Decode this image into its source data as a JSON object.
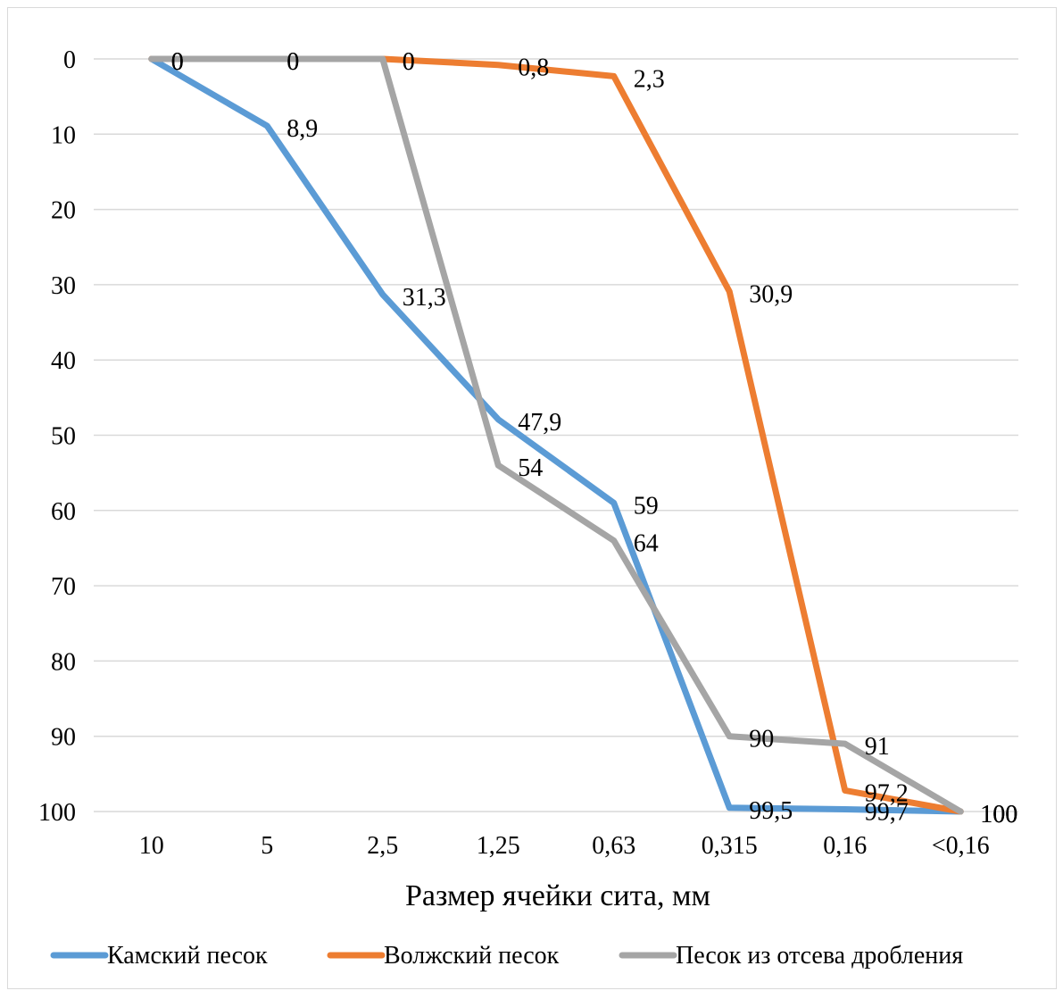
{
  "chart_data": {
    "type": "line",
    "title": "",
    "xlabel": "Размер ячейки сита, мм",
    "ylabel": "",
    "categories": [
      "10",
      "5",
      "2,5",
      "1,25",
      "0,63",
      "0,315",
      "0,16",
      "<0,16"
    ],
    "ylim": [
      0,
      100
    ],
    "y_axis_reversed": true,
    "y_ticks": [
      0,
      10,
      20,
      30,
      40,
      50,
      60,
      70,
      80,
      90,
      100
    ],
    "grid": true,
    "legend_position": "bottom",
    "series": [
      {
        "name": "Камский песок",
        "color": "#5b9bd5",
        "values": [
          0,
          8.9,
          31.3,
          47.9,
          59,
          99.5,
          99.7,
          100
        ],
        "labels": [
          "0",
          "8,9",
          "31,3",
          "47,9",
          "59",
          "99,5",
          "99,7",
          "100"
        ]
      },
      {
        "name": "Волжский песок",
        "color": "#ed7d31",
        "values": [
          0,
          0,
          0,
          0.8,
          2.3,
          30.9,
          97.2,
          100
        ],
        "labels": [
          "0",
          "0",
          "0",
          "0,8",
          "2,3",
          "30,9",
          "97,2",
          "100"
        ]
      },
      {
        "name": "Песок из отсева дробления",
        "color": "#a5a5a5",
        "values": [
          0,
          0,
          0,
          54,
          64,
          90,
          91,
          100
        ],
        "labels": [
          "0",
          "0",
          "0",
          "54",
          "64",
          "90",
          "91",
          "100"
        ]
      }
    ]
  }
}
